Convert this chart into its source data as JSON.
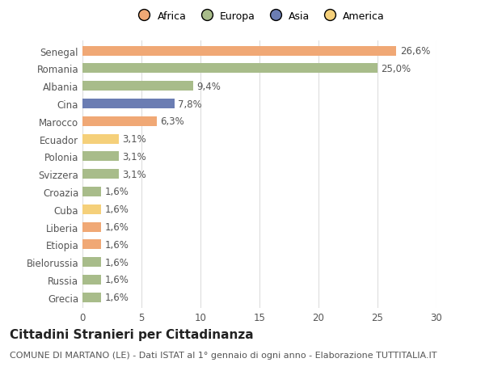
{
  "categories": [
    "Senegal",
    "Romania",
    "Albania",
    "Cina",
    "Marocco",
    "Ecuador",
    "Polonia",
    "Svizzera",
    "Croazia",
    "Cuba",
    "Liberia",
    "Etiopia",
    "Bielorussia",
    "Russia",
    "Grecia"
  ],
  "values": [
    26.6,
    25.0,
    9.4,
    7.8,
    6.3,
    3.1,
    3.1,
    3.1,
    1.6,
    1.6,
    1.6,
    1.6,
    1.6,
    1.6,
    1.6
  ],
  "labels": [
    "26,6%",
    "25,0%",
    "9,4%",
    "7,8%",
    "6,3%",
    "3,1%",
    "3,1%",
    "3,1%",
    "1,6%",
    "1,6%",
    "1,6%",
    "1,6%",
    "1,6%",
    "1,6%",
    "1,6%"
  ],
  "colors": [
    "#F0A875",
    "#A8BC8A",
    "#A8BC8A",
    "#6B7DB3",
    "#F0A875",
    "#F5D07A",
    "#A8BC8A",
    "#A8BC8A",
    "#A8BC8A",
    "#F5D07A",
    "#F0A875",
    "#F0A875",
    "#A8BC8A",
    "#A8BC8A",
    "#A8BC8A"
  ],
  "legend_labels": [
    "Africa",
    "Europa",
    "Asia",
    "America"
  ],
  "legend_colors": [
    "#F0A875",
    "#A8BC8A",
    "#6B7DB3",
    "#F5D07A"
  ],
  "xlim": [
    0,
    30
  ],
  "xticks": [
    0,
    5,
    10,
    15,
    20,
    25,
    30
  ],
  "title": "Cittadini Stranieri per Cittadinanza",
  "subtitle": "COMUNE DI MARTANO (LE) - Dati ISTAT al 1° gennaio di ogni anno - Elaborazione TUTTITALIA.IT",
  "bg_color": "#FFFFFF",
  "grid_color": "#DDDDDD",
  "bar_height": 0.55,
  "label_fontsize": 8.5,
  "tick_fontsize": 8.5,
  "title_fontsize": 11,
  "subtitle_fontsize": 8
}
